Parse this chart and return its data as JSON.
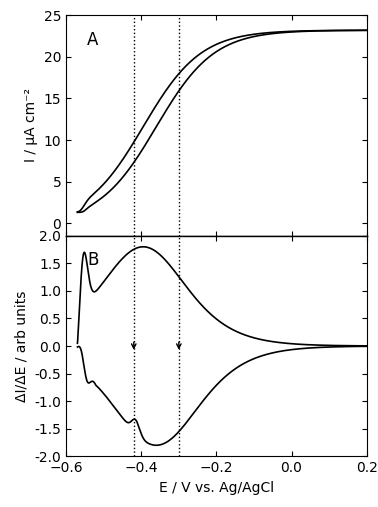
{
  "title_A": "A",
  "title_B": "B",
  "xlabel": "E / V vs. Ag/AgCl",
  "ylabel_A": "I / μA cm⁻²",
  "ylabel_B": "ΔI/ΔE / arb units",
  "xlim": [
    -0.6,
    0.2
  ],
  "ylim_A": [
    -1.5,
    25
  ],
  "ylim_B": [
    -2.0,
    2.0
  ],
  "xticks": [
    -0.6,
    -0.4,
    -0.2,
    0.0,
    0.2
  ],
  "yticks_A": [
    0,
    5,
    10,
    15,
    20,
    25
  ],
  "yticks_B": [
    -2.0,
    -1.5,
    -1.0,
    -0.5,
    0.0,
    0.5,
    1.0,
    1.5,
    2.0
  ],
  "dotted_line1": -0.42,
  "dotted_line2": -0.3,
  "line_color": "#000000",
  "bg_color": "#ffffff",
  "figsize": [
    3.78,
    5.07
  ],
  "dpi": 100
}
